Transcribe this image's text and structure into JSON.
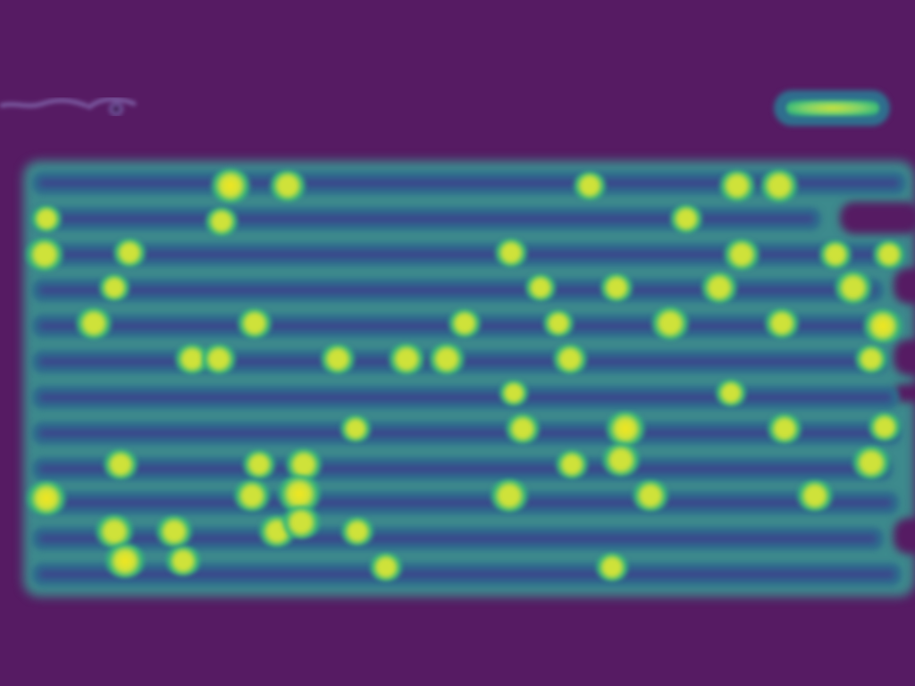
{
  "view": {
    "background": "#561b63",
    "palette": {
      "border": "#3d8a8d",
      "band": "#2f6b8e",
      "gap": "#3a4a8c",
      "spot_mid": "#35b779",
      "spot_hot": "#cfe23a",
      "spot_peak": "#f4e61e"
    }
  }
}
